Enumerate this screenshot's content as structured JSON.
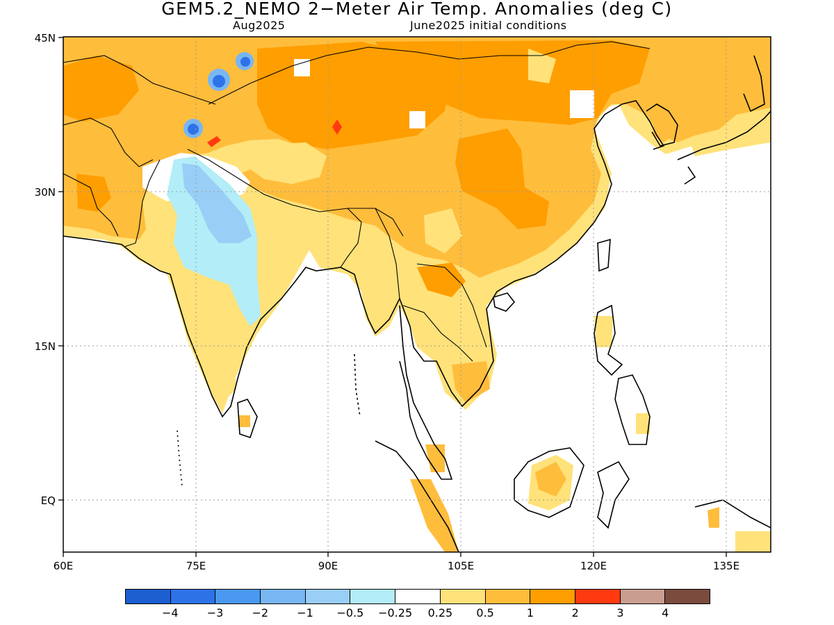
{
  "title": "GEM5.2_NEMO 2−Meter Air Temp. Anomalies (deg C)",
  "subtitle_left": "Aug2025",
  "subtitle_right": "June2025 initial conditions",
  "lat_labels": [
    "45N",
    "30N",
    "15N",
    "EQ"
  ],
  "lon_labels": [
    "60E",
    "75E",
    "90E",
    "105E",
    "120E",
    "135E"
  ],
  "colorbar": {
    "colors": [
      "#1c5fd1",
      "#2e72e8",
      "#4a98f0",
      "#78b6f4",
      "#99cef7",
      "#b2edf8",
      "#ffffff",
      "#ffe27a",
      "#ffbd3c",
      "#ff9e00",
      "#ff3a10",
      "#c99e91",
      "#7b4b3e"
    ],
    "labels": [
      "−4",
      "−3",
      "−2",
      "−1",
      "−0.5",
      "−0.25",
      "0.25",
      "0.5",
      "1",
      "2",
      "3",
      "4"
    ]
  }
}
